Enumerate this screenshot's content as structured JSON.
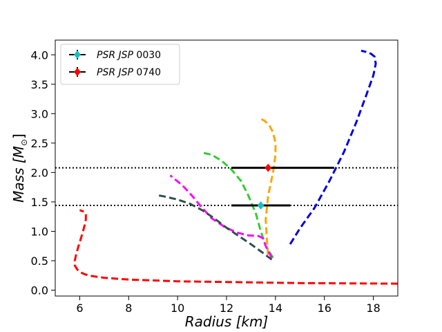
{
  "chart_data": {
    "type": "line",
    "xlabel": "Radius [km]",
    "ylabel": "Mass [M_⊙]",
    "ylabel_main": "Mass [M",
    "ylabel_sub": "⊙",
    "ylabel_close": "]",
    "xlim": [
      5.0,
      19.0
    ],
    "ylim": [
      -0.1,
      4.25
    ],
    "xticks": [
      6,
      8,
      10,
      12,
      14,
      16,
      18
    ],
    "yticks": [
      0.0,
      0.5,
      1.0,
      1.5,
      2.0,
      2.5,
      3.0,
      3.5,
      4.0
    ],
    "xtick_labels": [
      "6",
      "8",
      "10",
      "12",
      "14",
      "16",
      "18"
    ],
    "ytick_labels": [
      "0.0",
      "0.5",
      "1.0",
      "1.5",
      "2.0",
      "2.5",
      "3.0",
      "3.5",
      "4.0"
    ],
    "hlines": [
      2.08,
      1.44
    ],
    "series": [
      {
        "name": "red-eos",
        "color": "#ff0000",
        "x": [
          19.0,
          15.0,
          10.0,
          8.0,
          7.0,
          6.5,
          6.2,
          6.0,
          5.9,
          5.8,
          5.8,
          5.85,
          5.95,
          6.1,
          6.2,
          6.25,
          6.25,
          6.2,
          6.0
        ],
        "y": [
          0.11,
          0.12,
          0.15,
          0.18,
          0.21,
          0.24,
          0.27,
          0.31,
          0.35,
          0.42,
          0.5,
          0.6,
          0.75,
          0.95,
          1.1,
          1.2,
          1.28,
          1.33,
          1.36
        ]
      },
      {
        "name": "blue-eos",
        "color": "#0000dd",
        "x": [
          14.6,
          15.0,
          15.6,
          16.2,
          16.8,
          17.3,
          17.7,
          18.0,
          18.1,
          18.05,
          17.9,
          17.7,
          17.5
        ],
        "y": [
          0.78,
          1.05,
          1.4,
          1.85,
          2.35,
          2.85,
          3.3,
          3.65,
          3.85,
          3.97,
          4.02,
          4.05,
          4.07
        ]
      },
      {
        "name": "orange-eos",
        "color": "#ffa500",
        "x": [
          13.7,
          13.65,
          13.6,
          13.7,
          13.9,
          14.0,
          14.0,
          13.9,
          13.75,
          13.55,
          13.35
        ],
        "y": [
          0.6,
          0.85,
          1.2,
          1.6,
          2.0,
          2.3,
          2.5,
          2.68,
          2.8,
          2.88,
          2.92
        ]
      },
      {
        "name": "green-eos",
        "color": "#33cc33",
        "x": [
          13.9,
          13.6,
          13.4,
          13.2,
          12.9,
          12.6,
          12.2,
          11.8,
          11.4,
          11.0
        ],
        "y": [
          0.55,
          0.75,
          1.0,
          1.3,
          1.6,
          1.85,
          2.05,
          2.2,
          2.3,
          2.34
        ]
      },
      {
        "name": "magenta-eos",
        "color": "#ff00ff",
        "x": [
          13.85,
          13.6,
          13.5,
          13.3,
          12.9,
          12.4,
          11.9,
          11.4,
          11.0,
          10.6,
          10.2,
          9.7
        ],
        "y": [
          0.55,
          0.75,
          0.88,
          0.92,
          0.93,
          0.98,
          1.08,
          1.22,
          1.4,
          1.6,
          1.78,
          1.95
        ]
      },
      {
        "name": "darkslate-eos",
        "color": "#2f4f4f",
        "x": [
          13.85,
          13.5,
          13.0,
          12.5,
          12.0,
          11.5,
          11.0,
          10.5,
          10.0,
          9.5,
          9.1
        ],
        "y": [
          0.52,
          0.63,
          0.78,
          0.92,
          1.06,
          1.22,
          1.36,
          1.47,
          1.54,
          1.59,
          1.62
        ]
      }
    ],
    "points": [
      {
        "name": "PSR JSP 0030",
        "x": 13.4,
        "y": 1.44,
        "xerr": [
          12.2,
          14.6
        ],
        "color": "#17bfbf",
        "marker": "diamond"
      },
      {
        "name": "PSR JSP 0740",
        "x": 13.7,
        "y": 2.08,
        "xerr": [
          12.2,
          16.4
        ],
        "color": "#ff0000",
        "marker": "diamond"
      }
    ],
    "legend": {
      "position": "top-left",
      "entries": [
        {
          "label_italic": "PSR JSP",
          "label_num": "0030",
          "color": "#17bfbf"
        },
        {
          "label_italic": "PSR JSP",
          "label_num": "0740",
          "color": "#ff0000"
        }
      ]
    }
  }
}
